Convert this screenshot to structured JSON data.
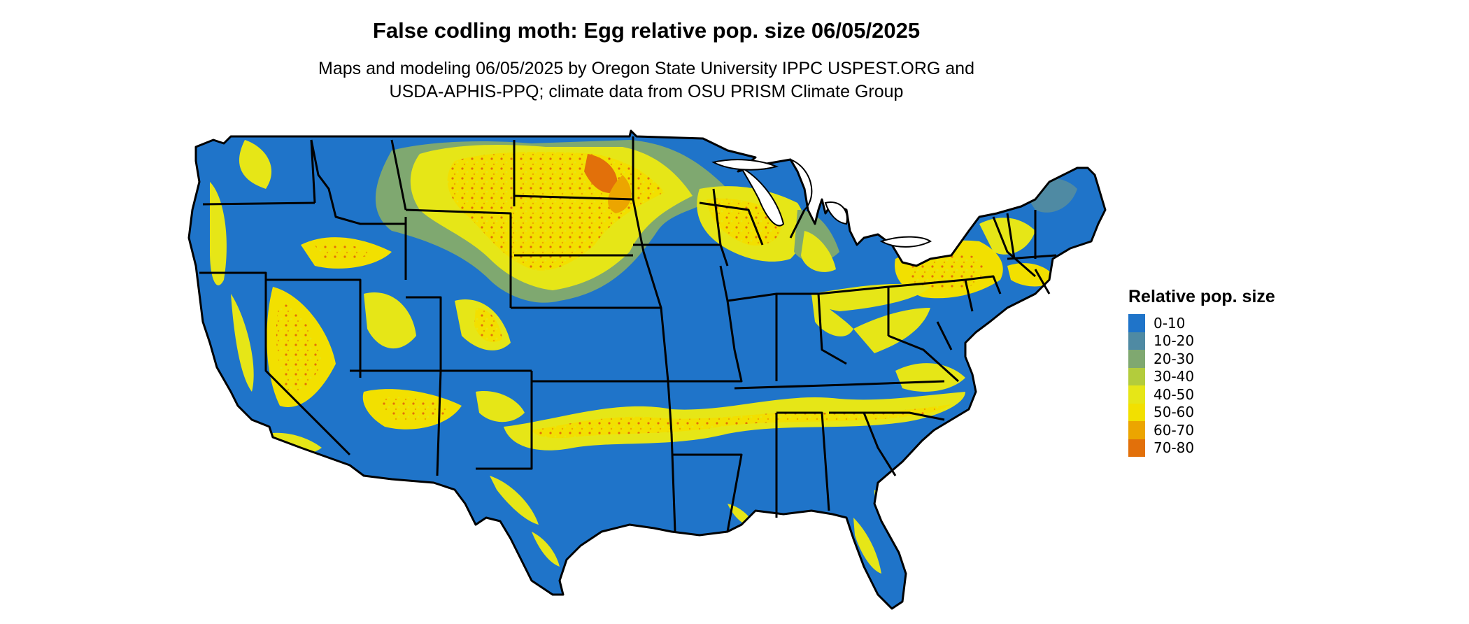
{
  "title": "False codling moth: Egg relative pop. size 06/05/2025",
  "subtitle_line1": "Maps and modeling 06/05/2025 by Oregon State University IPPC USPEST.ORG and",
  "subtitle_line2": "USDA-APHIS-PPQ; climate data from OSU PRISM Climate Group",
  "legend": {
    "title": "Relative pop. size",
    "items": [
      {
        "label": "0-10",
        "color": "#1f74c9"
      },
      {
        "label": "10-20",
        "color": "#4f8aa3"
      },
      {
        "label": "20-30",
        "color": "#7fa870"
      },
      {
        "label": "30-40",
        "color": "#b3cc3c"
      },
      {
        "label": "40-50",
        "color": "#e6e617"
      },
      {
        "label": "50-60",
        "color": "#f2e000"
      },
      {
        "label": "60-70",
        "color": "#eca500"
      },
      {
        "label": "70-80",
        "color": "#e2700a"
      }
    ]
  },
  "map": {
    "region": "Contiguous United States",
    "base_color": "#1f74c9",
    "border_color": "#000000"
  }
}
